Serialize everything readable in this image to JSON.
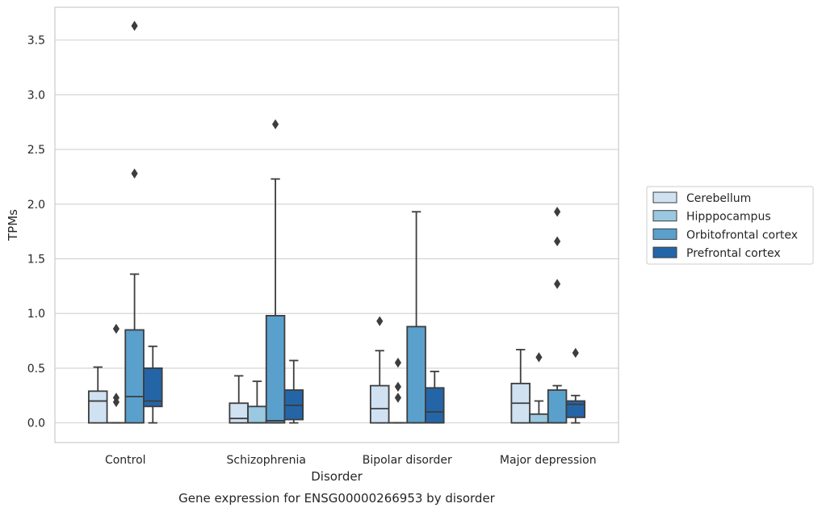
{
  "chart_data": {
    "type": "box",
    "title": "Gene expression for ENSG00000266953 by disorder",
    "xlabel": "Disorder",
    "ylabel": "TPMs",
    "ylim": [
      -0.18,
      3.8
    ],
    "yticks": [
      0.0,
      0.5,
      1.0,
      1.5,
      2.0,
      2.5,
      3.0,
      3.5
    ],
    "ytick_labels": [
      "0.0",
      "0.5",
      "1.0",
      "1.5",
      "2.0",
      "2.5",
      "3.0",
      "3.5"
    ],
    "grid": true,
    "legend_position": "right",
    "categories": [
      "Control",
      "Schizophrenia",
      "Bipolar disorder",
      "Major depression"
    ],
    "series": [
      {
        "name": "Cerebellum",
        "color": "#d0e1f2",
        "boxes": [
          {
            "whislo": 0.0,
            "q1": 0.0,
            "med": 0.2,
            "q3": 0.29,
            "whishi": 0.51,
            "fliers": []
          },
          {
            "whislo": 0.0,
            "q1": 0.0,
            "med": 0.04,
            "q3": 0.18,
            "whishi": 0.43,
            "fliers": []
          },
          {
            "whislo": 0.0,
            "q1": 0.0,
            "med": 0.13,
            "q3": 0.34,
            "whishi": 0.66,
            "fliers": [
              0.93
            ]
          },
          {
            "whislo": 0.0,
            "q1": 0.0,
            "med": 0.18,
            "q3": 0.36,
            "whishi": 0.67,
            "fliers": []
          }
        ]
      },
      {
        "name": "Hipppocampus",
        "color": "#9ac8e0",
        "boxes": [
          {
            "whislo": 0.0,
            "q1": 0.0,
            "med": 0.0,
            "q3": 0.0,
            "whishi": 0.0,
            "fliers": [
              0.19,
              0.23,
              0.86
            ]
          },
          {
            "whislo": 0.0,
            "q1": 0.0,
            "med": 0.0,
            "q3": 0.15,
            "whishi": 0.38,
            "fliers": []
          },
          {
            "whislo": 0.0,
            "q1": 0.0,
            "med": 0.0,
            "q3": 0.0,
            "whishi": 0.0,
            "fliers": [
              0.23,
              0.33,
              0.55
            ]
          },
          {
            "whislo": 0.0,
            "q1": 0.0,
            "med": 0.0,
            "q3": 0.08,
            "whishi": 0.2,
            "fliers": [
              0.6
            ]
          }
        ]
      },
      {
        "name": "Orbitofrontal cortex",
        "color": "#5aa0cd",
        "boxes": [
          {
            "whislo": 0.0,
            "q1": 0.0,
            "med": 0.24,
            "q3": 0.85,
            "whishi": 1.36,
            "fliers": [
              2.28,
              3.63
            ]
          },
          {
            "whislo": 0.0,
            "q1": 0.0,
            "med": 0.02,
            "q3": 0.98,
            "whishi": 2.23,
            "fliers": [
              2.73
            ]
          },
          {
            "whislo": 0.0,
            "q1": 0.0,
            "med": 0.0,
            "q3": 0.88,
            "whishi": 1.93,
            "fliers": []
          },
          {
            "whislo": 0.0,
            "q1": 0.0,
            "med": 0.0,
            "q3": 0.3,
            "whishi": 0.34,
            "fliers": [
              1.27,
              1.66,
              1.93
            ]
          }
        ]
      },
      {
        "name": "Prefrontal cortex",
        "color": "#2465a8",
        "boxes": [
          {
            "whislo": 0.0,
            "q1": 0.15,
            "med": 0.2,
            "q3": 0.5,
            "whishi": 0.7,
            "fliers": []
          },
          {
            "whislo": 0.0,
            "q1": 0.03,
            "med": 0.16,
            "q3": 0.3,
            "whishi": 0.57,
            "fliers": []
          },
          {
            "whislo": 0.0,
            "q1": 0.0,
            "med": 0.1,
            "q3": 0.32,
            "whishi": 0.47,
            "fliers": []
          },
          {
            "whislo": 0.0,
            "q1": 0.05,
            "med": 0.17,
            "q3": 0.2,
            "whishi": 0.25,
            "fliers": [
              0.64
            ]
          }
        ]
      }
    ]
  }
}
